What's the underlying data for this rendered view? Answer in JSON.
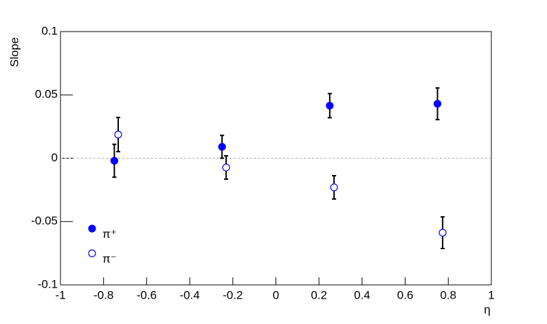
{
  "chart_data": {
    "type": "scatter",
    "x_label": "η",
    "y_label": "Slope",
    "xlim": [
      -1,
      1
    ],
    "ylim": [
      -0.1,
      0.1
    ],
    "xticks": [
      -1,
      -0.8,
      -0.6,
      -0.4,
      -0.2,
      0,
      0.2,
      0.4,
      0.6,
      0.8,
      1
    ],
    "yticks": [
      -0.1,
      -0.05,
      0,
      0.05,
      0.1
    ],
    "reference_line": 0,
    "series": [
      {
        "name": "π⁺",
        "color": "#0000ff",
        "marker": "filled",
        "x": [
          -0.75,
          -0.25,
          0.25,
          0.75
        ],
        "values": [
          -0.002,
          0.009,
          0.0415,
          0.043
        ],
        "errors": [
          0.013,
          0.009,
          0.0095,
          0.0125
        ]
      },
      {
        "name": "π⁻",
        "color": "#0000ff",
        "marker": "open",
        "x": [
          -0.732,
          -0.231,
          0.27,
          0.774
        ],
        "values": [
          0.0187,
          -0.0073,
          -0.023,
          -0.0588
        ],
        "errors": [
          0.0135,
          0.0092,
          0.0092,
          0.0125
        ]
      }
    ]
  }
}
